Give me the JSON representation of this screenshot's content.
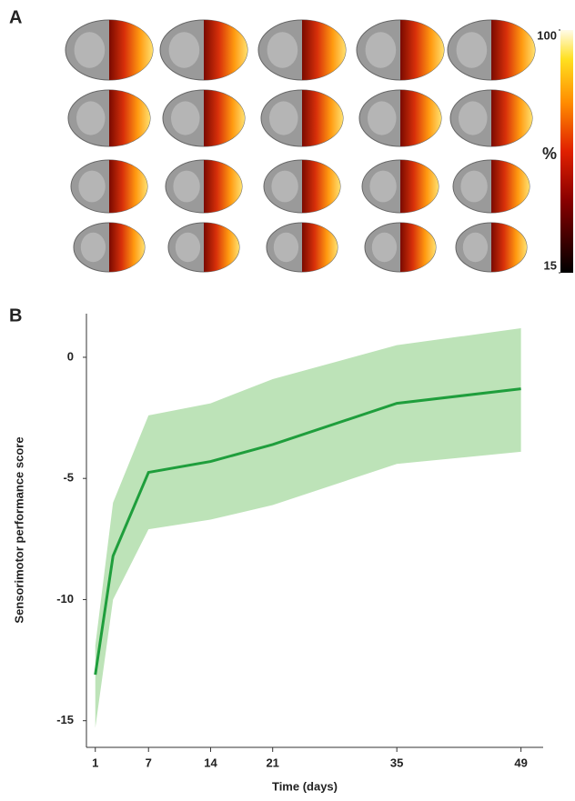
{
  "chart_data": [
    {
      "type": "image-grid",
      "label": "A",
      "clim": [
        15,
        100
      ],
      "cticks": [
        100,
        15
      ],
      "colorbar_label": "%"
    },
    {
      "type": "line",
      "label": "B",
      "x": [
        1,
        3,
        7,
        14,
        21,
        35,
        49
      ],
      "values": [
        -13.1,
        -8.2,
        -4.75,
        -4.3,
        -3.6,
        -1.9,
        -1.3
      ],
      "band": {
        "upper": [
          -11.9,
          -6.0,
          -2.4,
          -1.9,
          -0.9,
          0.5,
          1.2
        ],
        "lower": [
          -15.3,
          -10.0,
          -7.1,
          -6.7,
          -6.1,
          -4.4,
          -3.9
        ]
      },
      "color": "#1f9e3c",
      "band_color": "#bde3b8",
      "xlim": [
        0,
        51.5
      ],
      "ylim": [
        -16.1,
        1.8
      ],
      "xticks": [
        1,
        7,
        14,
        21,
        35,
        49
      ],
      "yticks": [
        -15,
        -10,
        -5,
        0
      ],
      "xlabel": "Time (days)",
      "ylabel": "Sensorimotor performance score"
    }
  ]
}
